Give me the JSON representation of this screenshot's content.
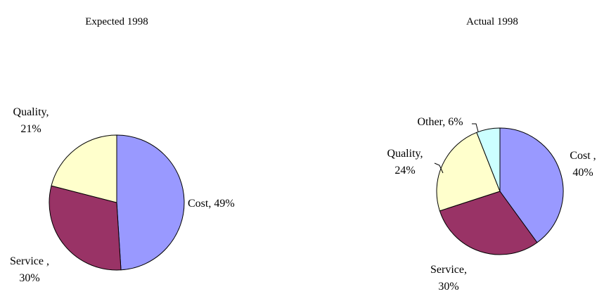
{
  "chart_data": [
    {
      "type": "pie",
      "title": "Expected 1998",
      "slices": [
        {
          "name": "Cost",
          "value": 49,
          "color": "#9999FF",
          "label_lines": [
            "Cost, 49%"
          ]
        },
        {
          "name": "Service",
          "value": 30,
          "color": "#993366",
          "label_lines": [
            "Service ,",
            "30%"
          ]
        },
        {
          "name": "Quality",
          "value": 21,
          "color": "#FFFFCC",
          "label_lines": [
            "Quality,",
            "21%"
          ]
        }
      ]
    },
    {
      "type": "pie",
      "title": "Actual 1998",
      "slices": [
        {
          "name": "Cost",
          "value": 40,
          "color": "#9999FF",
          "label_lines": [
            "Cost ,",
            "40%"
          ]
        },
        {
          "name": "Service",
          "value": 30,
          "color": "#993366",
          "label_lines": [
            "Service,",
            "30%"
          ]
        },
        {
          "name": "Quality",
          "value": 24,
          "color": "#FFFFCC",
          "label_lines": [
            "Quality,",
            "24%"
          ]
        },
        {
          "name": "Other",
          "value": 6,
          "color": "#CCFFFF",
          "label_lines": [
            "Other, 6%"
          ]
        }
      ]
    }
  ]
}
